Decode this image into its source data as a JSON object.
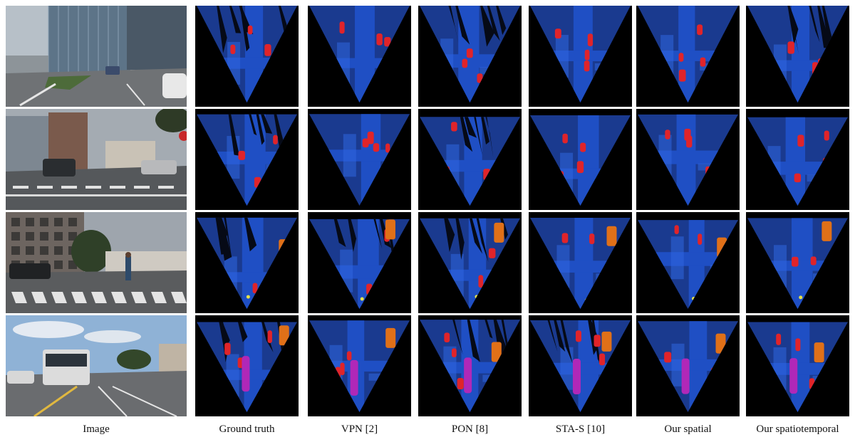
{
  "columns": [
    {
      "key": "image",
      "label": "Image"
    },
    {
      "key": "ground_truth",
      "label": "Ground truth"
    },
    {
      "key": "vpn",
      "label": "VPN [2]"
    },
    {
      "key": "pon",
      "label": "PON [8]"
    },
    {
      "key": "sta_s",
      "label": "STA-S [10]"
    },
    {
      "key": "our_spatial",
      "label": "Our spatial"
    },
    {
      "key": "our_spatiotemporal",
      "label": "Our spatiotemporal"
    }
  ],
  "rows": [
    {
      "scene": "street-with-glass-building",
      "masks": {
        "car": 4,
        "pedestrian": 0,
        "truck": 0,
        "bus": 0
      }
    },
    {
      "scene": "intersection-with-cars",
      "masks": {
        "car": 4,
        "pedestrian": 0,
        "truck": 0,
        "bus": 0
      }
    },
    {
      "scene": "crosswalk-with-pedestrian",
      "masks": {
        "car": 2,
        "pedestrian": 1,
        "truck": 1,
        "bus": 0
      }
    },
    {
      "scene": "road-with-bus",
      "masks": {
        "car": 3,
        "pedestrian": 0,
        "truck": 1,
        "bus": 1
      }
    }
  ],
  "colors": {
    "background": "#000000",
    "drivable": "#1f4fc4",
    "sidewalk": "#1a3a8f",
    "crossing": "#2f66e0",
    "car": "#e0242a",
    "truck": "#e07018",
    "bus": "#b028b8",
    "pedestrian": "#e6e24a"
  }
}
